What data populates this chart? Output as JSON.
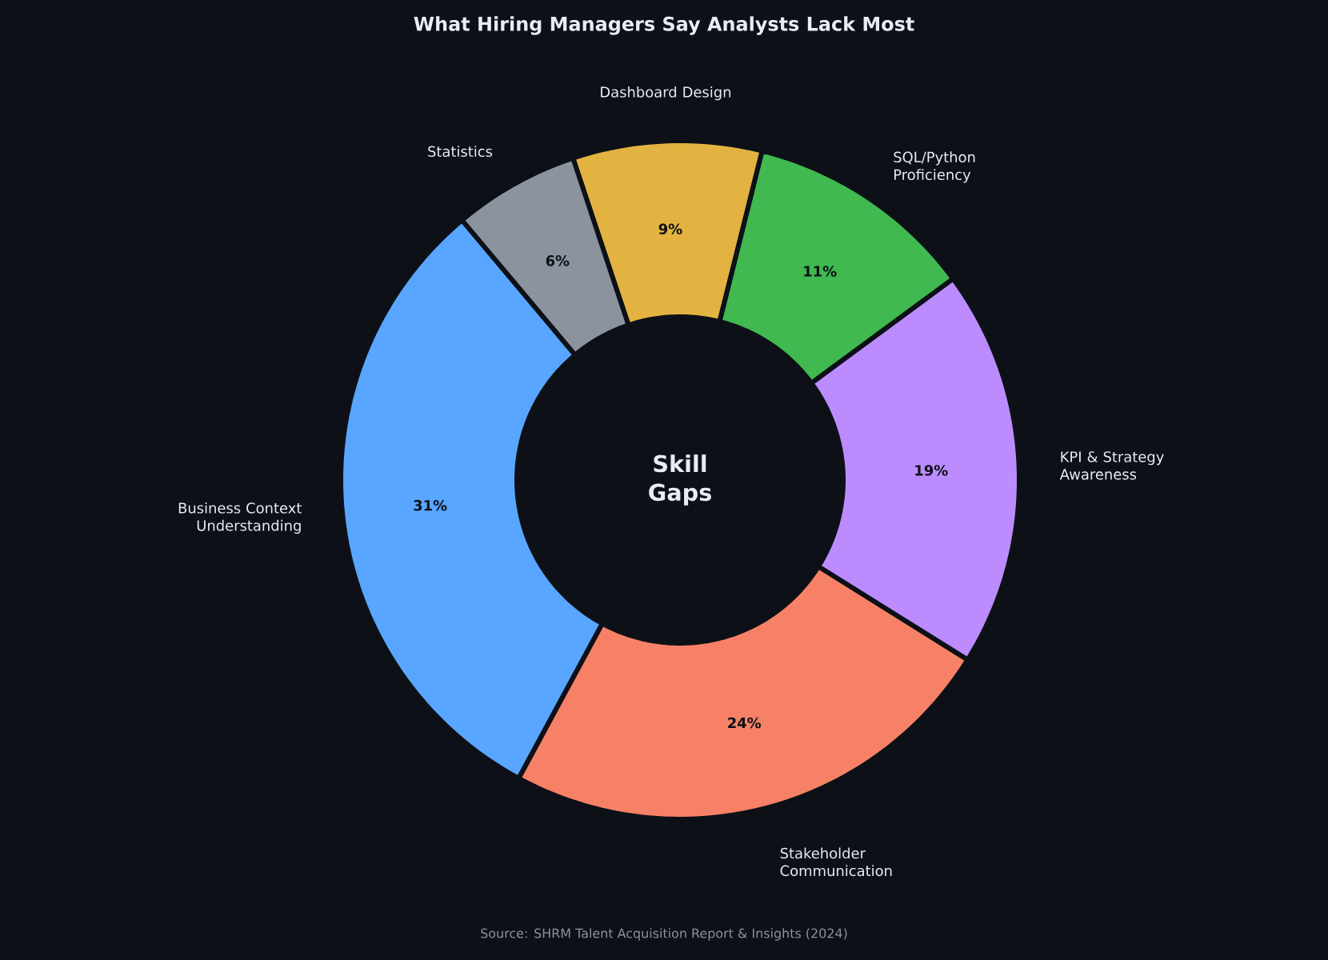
{
  "chart_data": {
    "type": "donut",
    "title": "What Hiring Managers Say Analysts Lack Most",
    "categories": [
      "Business Context Understanding",
      "Stakeholder Communication",
      "KPI & Strategy Awareness",
      "SQL/Python Proficiency",
      "Dashboard Design",
      "Statistics"
    ],
    "values": [
      31,
      24,
      19,
      11,
      9,
      6
    ],
    "colors": [
      "#58a6ff",
      "#f78166",
      "#bc8cff",
      "#3fb950",
      "#e3b341",
      "#8b949e"
    ],
    "value_labels": [
      "31%",
      "24%",
      "19%",
      "11%",
      "9%",
      "6%"
    ],
    "annotations": [
      "Skill Gaps",
      "Source: SHRM Talent Acquisition Report & Insights (2024)"
    ]
  }
}
